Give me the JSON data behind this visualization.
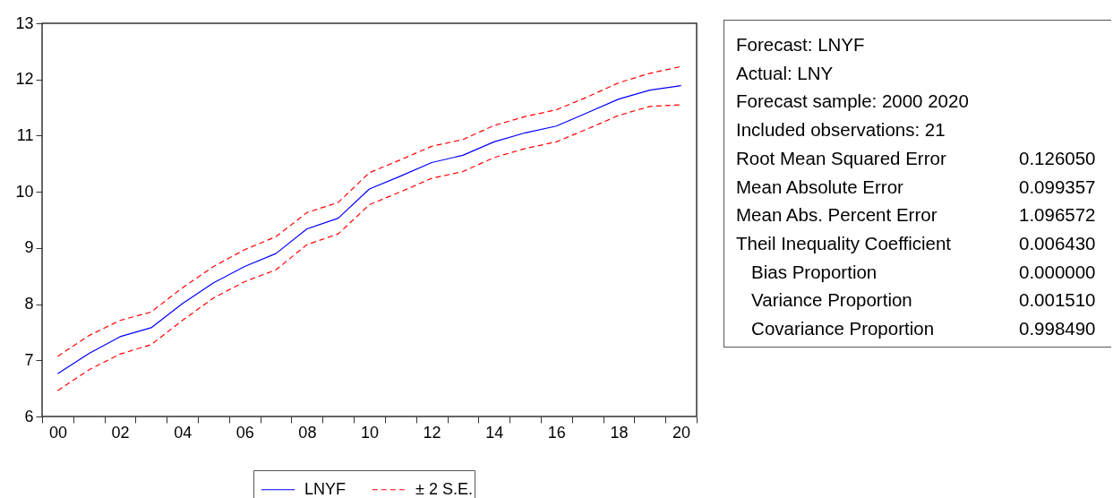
{
  "chart_data": {
    "type": "line",
    "categories": [
      "00",
      null,
      "02",
      null,
      "04",
      null,
      "06",
      null,
      "08",
      null,
      "10",
      null,
      "12",
      null,
      "14",
      null,
      "16",
      null,
      "18",
      null,
      "20"
    ],
    "series": [
      {
        "name": "LNYF",
        "color": "#0000ff",
        "line_style": "solid",
        "values": [
          6.76,
          7.12,
          7.42,
          7.58,
          8.01,
          8.38,
          8.67,
          8.9,
          9.34,
          9.53,
          10.05,
          10.28,
          10.52,
          10.65,
          10.89,
          11.05,
          11.17,
          11.41,
          11.65,
          11.81,
          11.89
        ]
      },
      {
        "name": "± 2 S.E.",
        "color": "#ff0000",
        "line_style": "dashed",
        "values": [
          7.07,
          7.44,
          7.71,
          7.86,
          8.29,
          8.67,
          8.97,
          9.2,
          9.63,
          9.81,
          10.34,
          10.57,
          10.81,
          10.93,
          11.18,
          11.34,
          11.46,
          11.69,
          11.94,
          12.11,
          12.23
        ]
      },
      {
        "color": "#ff0000",
        "line_style": "dashed",
        "values": [
          6.46,
          6.83,
          7.11,
          7.28,
          7.71,
          8.11,
          8.4,
          8.61,
          9.06,
          9.25,
          9.77,
          10.0,
          10.24,
          10.36,
          10.61,
          10.77,
          10.89,
          11.12,
          11.36,
          11.52,
          11.55
        ]
      }
    ],
    "ylim": [
      6,
      13
    ],
    "yticks": [
      6,
      7,
      8,
      9,
      10,
      11,
      12,
      13
    ],
    "legend": "bottom",
    "annotations": [
      "Forecast: LNYF",
      "Actual: LNY",
      "Forecast sample: 2000 2020",
      "Included observations: 21",
      "Root Mean Squared Error\t0.126050",
      "Mean Absolute Error\t0.099357",
      "Mean Abs. Percent Error\t1.096572",
      "Theil Inequality Coefficient\t0.006430",
      "   Bias Proportion\t0.000000",
      "   Variance Proportion\t0.001510",
      "   Covariance Proportion\t0.998490"
    ]
  }
}
